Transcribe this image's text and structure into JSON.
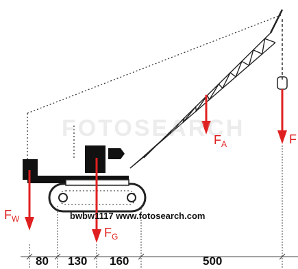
{
  "watermark": "FOTOSEARCH",
  "credit": "bwbw1117 www.fotosearch.com",
  "forces": {
    "w": {
      "main": "F",
      "sub": "W"
    },
    "g": {
      "main": "F",
      "sub": "G"
    },
    "a": {
      "main": "F",
      "sub": "A"
    },
    "load": {
      "main": "F",
      "sub": ""
    }
  },
  "dimensions": [
    "80",
    "130",
    "160",
    "500"
  ],
  "colors": {
    "arrow": "#e02020",
    "ink": "#111111"
  }
}
